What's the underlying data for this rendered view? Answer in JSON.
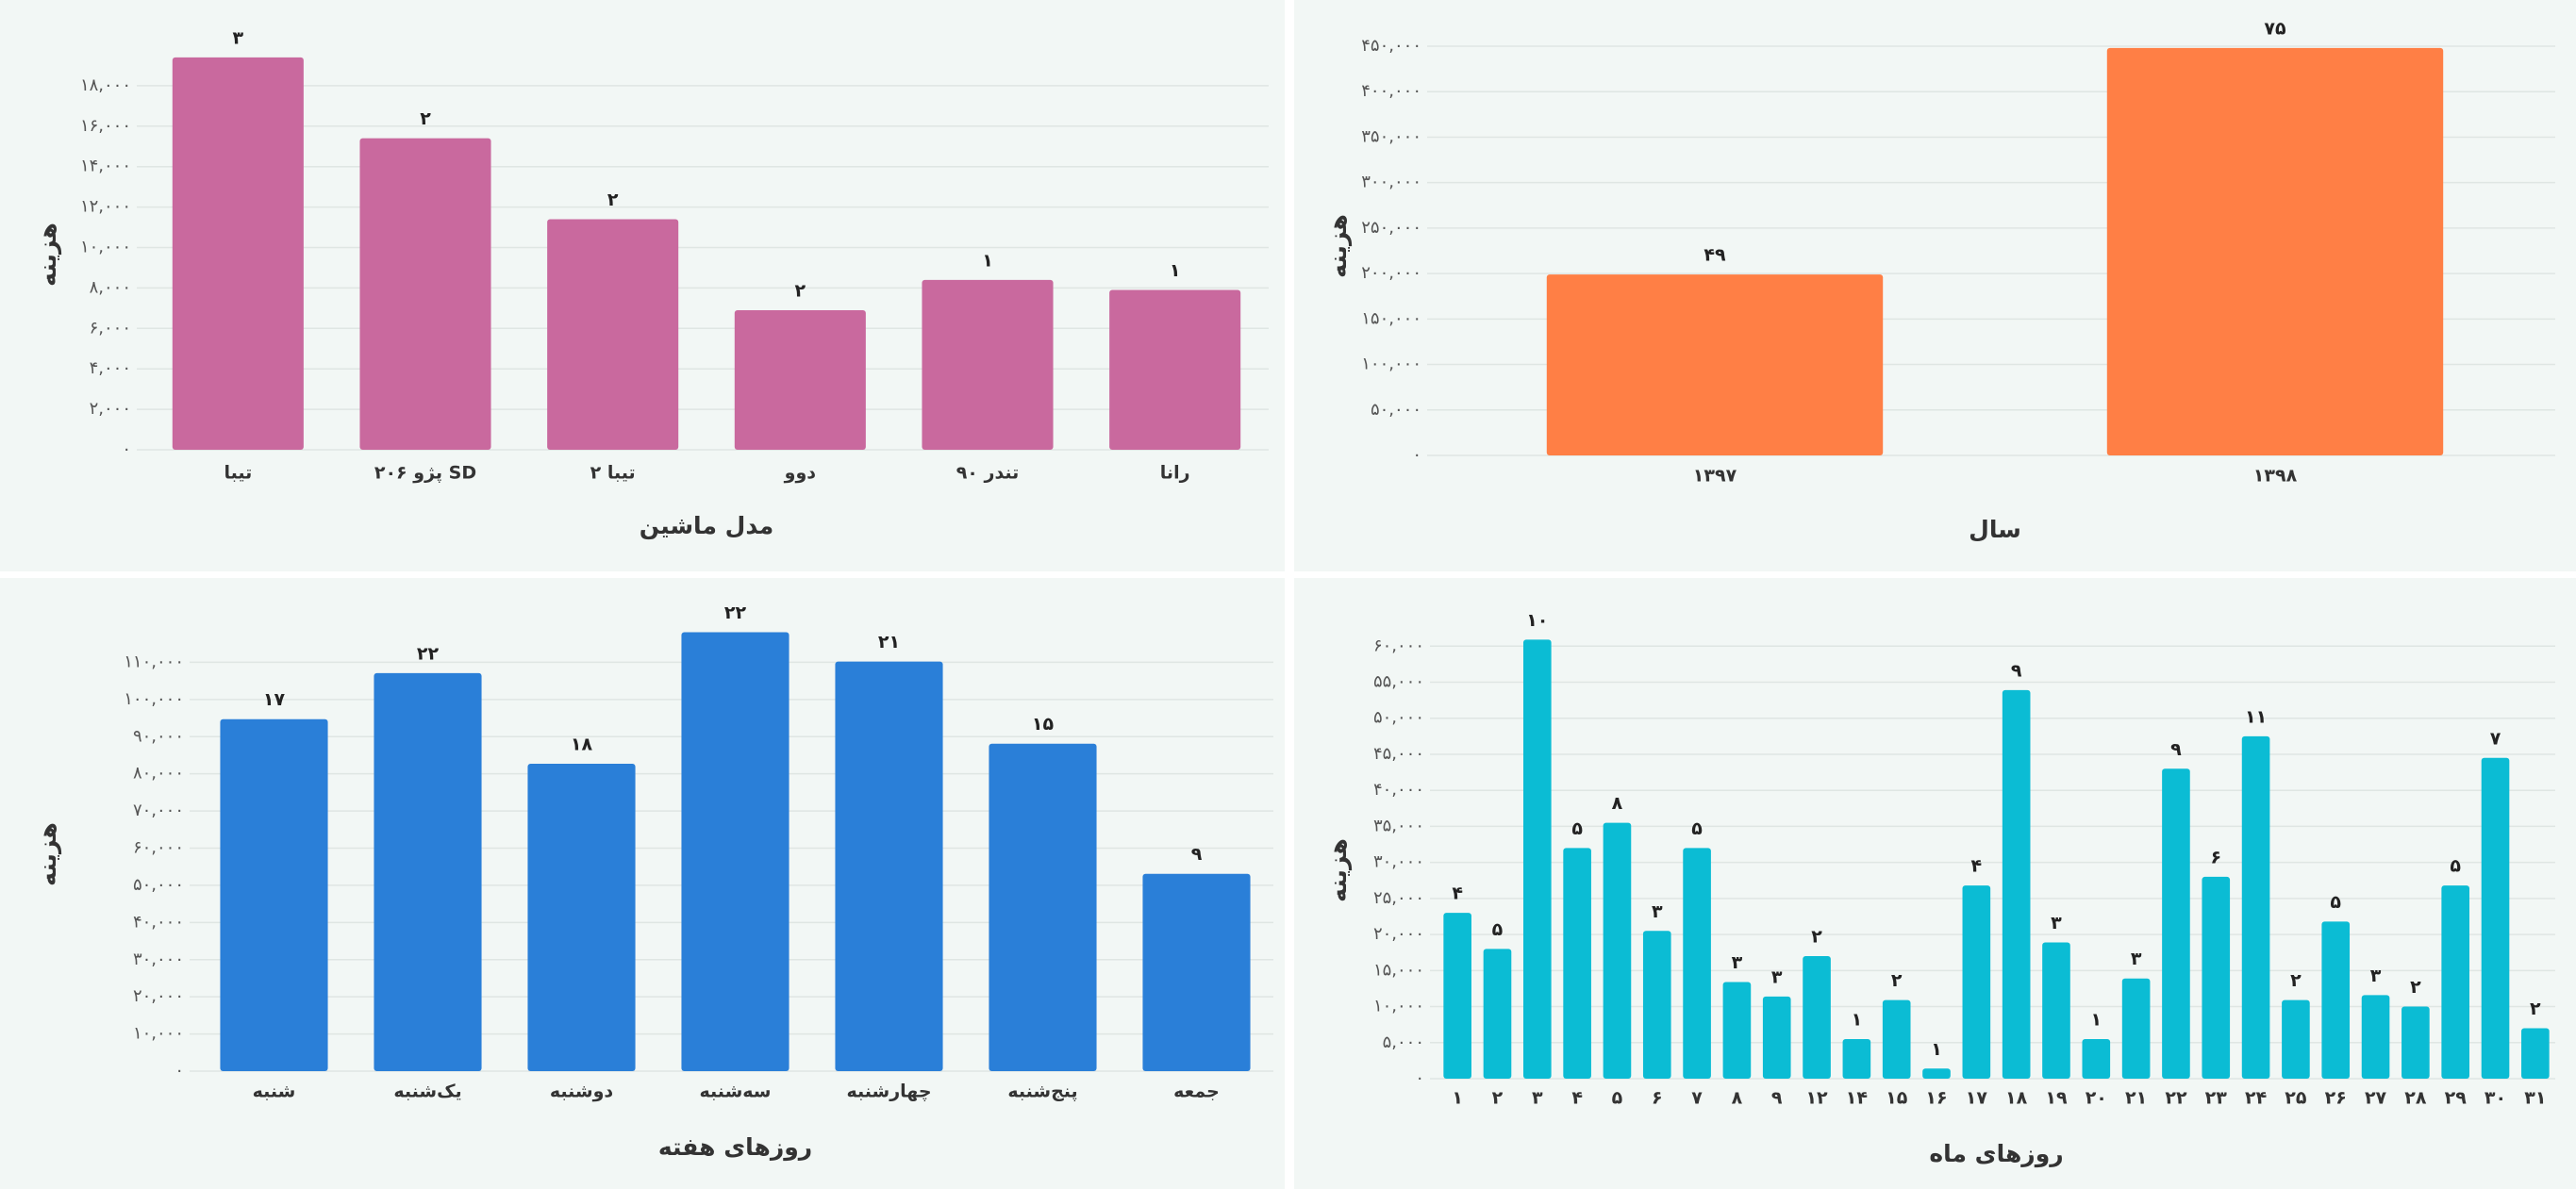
{
  "chart_data": [
    {
      "type": "bar",
      "x_label": "مدل ماشین",
      "y_label": "هزینه",
      "categories": [
        "تیبا",
        "پژو ۲۰۶ SD",
        "تیبا ۲",
        "دوو",
        "تندر ۹۰",
        "رانا"
      ],
      "values": [
        19400,
        15400,
        11400,
        6900,
        8400,
        7900
      ],
      "count_labels": [
        "۳",
        "۲",
        "۲",
        "۲",
        "۱",
        "۱"
      ],
      "color": "#c9699e",
      "ylim": [
        0,
        20000
      ],
      "grid": true,
      "yticks": [
        {
          "value": 0,
          "label": "۰"
        },
        {
          "value": 2000,
          "label": "۲,۰۰۰"
        },
        {
          "value": 4000,
          "label": "۴,۰۰۰"
        },
        {
          "value": 6000,
          "label": "۶,۰۰۰"
        },
        {
          "value": 8000,
          "label": "۸,۰۰۰"
        },
        {
          "value": 10000,
          "label": "۱۰,۰۰۰"
        },
        {
          "value": 12000,
          "label": "۱۲,۰۰۰"
        },
        {
          "value": 14000,
          "label": "۱۴,۰۰۰"
        },
        {
          "value": 16000,
          "label": "۱۶,۰۰۰"
        },
        {
          "value": 18000,
          "label": "۱۸,۰۰۰"
        }
      ]
    },
    {
      "type": "bar",
      "x_label": "سال",
      "y_label": "هزینه",
      "categories": [
        "۱۳۹۷",
        "۱۳۹۸"
      ],
      "values": [
        199000,
        448000
      ],
      "count_labels": [
        "۴۹",
        "۷۵"
      ],
      "color": "#ff7f45",
      "ylim": [
        0,
        450000
      ],
      "grid": true,
      "yticks": [
        {
          "value": 0,
          "label": "۰"
        },
        {
          "value": 50000,
          "label": "۵۰,۰۰۰"
        },
        {
          "value": 100000,
          "label": "۱۰۰,۰۰۰"
        },
        {
          "value": 150000,
          "label": "۱۵۰,۰۰۰"
        },
        {
          "value": 200000,
          "label": "۲۰۰,۰۰۰"
        },
        {
          "value": 250000,
          "label": "۲۵۰,۰۰۰"
        },
        {
          "value": 300000,
          "label": "۳۰۰,۰۰۰"
        },
        {
          "value": 350000,
          "label": "۳۵۰,۰۰۰"
        },
        {
          "value": 400000,
          "label": "۴۰۰,۰۰۰"
        },
        {
          "value": 450000,
          "label": "۴۵۰,۰۰۰"
        }
      ]
    },
    {
      "type": "bar",
      "x_label": "روزهای هفته",
      "y_label": "هزینه",
      "categories": [
        "شنبه",
        "یک‌شنبه",
        "دوشنبه",
        "سه‌شنبه",
        "چهارشنبه",
        "پنج‌شنبه",
        "جمعه"
      ],
      "values": [
        94700,
        107100,
        82700,
        118100,
        110200,
        88100,
        53100
      ],
      "count_labels": [
        "۱۷",
        "۲۲",
        "۱۸",
        "۲۲",
        "۲۱",
        "۱۵",
        "۹"
      ],
      "color": "#2a7fd8",
      "ylim": [
        0,
        120000
      ],
      "grid": true,
      "yticks": [
        {
          "value": 0,
          "label": "۰"
        },
        {
          "value": 10000,
          "label": "۱۰,۰۰۰"
        },
        {
          "value": 20000,
          "label": "۲۰,۰۰۰"
        },
        {
          "value": 30000,
          "label": "۳۰,۰۰۰"
        },
        {
          "value": 40000,
          "label": "۴۰,۰۰۰"
        },
        {
          "value": 50000,
          "label": "۵۰,۰۰۰"
        },
        {
          "value": 60000,
          "label": "۶۰,۰۰۰"
        },
        {
          "value": 70000,
          "label": "۷۰,۰۰۰"
        },
        {
          "value": 80000,
          "label": "۸۰,۰۰۰"
        },
        {
          "value": 90000,
          "label": "۹۰,۰۰۰"
        },
        {
          "value": 100000,
          "label": "۱۰۰,۰۰۰"
        },
        {
          "value": 110000,
          "label": "۱۱۰,۰۰۰"
        }
      ]
    },
    {
      "type": "bar",
      "x_label": "روزهای ماه",
      "y_label": "هزینه",
      "categories": [
        "۱",
        "۲",
        "۳",
        "۴",
        "۵",
        "۶",
        "۷",
        "۸",
        "۹",
        "۱۲",
        "۱۴",
        "۱۵",
        "۱۶",
        "۱۷",
        "۱۸",
        "۱۹",
        "۲۰",
        "۲۱",
        "۲۲",
        "۲۳",
        "۲۴",
        "۲۵",
        "۲۶",
        "۲۷",
        "۲۸",
        "۲۹",
        "۳۰",
        "۳۱"
      ],
      "values": [
        23000,
        18000,
        60900,
        32000,
        35500,
        20500,
        32000,
        13400,
        11400,
        17000,
        5500,
        10900,
        1400,
        26800,
        53900,
        18900,
        5500,
        13900,
        43000,
        28000,
        47500,
        10900,
        21800,
        11600,
        10000,
        26800,
        44500,
        7000
      ],
      "count_labels": [
        "۴",
        "۵",
        "۱۰",
        "۵",
        "۸",
        "۳",
        "۵",
        "۳",
        "۳",
        "۲",
        "۱",
        "۲",
        "۱",
        "۴",
        "۹",
        "۳",
        "۱",
        "۳",
        "۹",
        "۶",
        "۱۱",
        "۲",
        "۵",
        "۳",
        "۲",
        "۵",
        "۷",
        "۲"
      ],
      "color": "#0bbcd4",
      "ylim": [
        0,
        62000
      ],
      "grid": true,
      "yticks": [
        {
          "value": 0,
          "label": "۰"
        },
        {
          "value": 5000,
          "label": "۵,۰۰۰"
        },
        {
          "value": 10000,
          "label": "۱۰,۰۰۰"
        },
        {
          "value": 15000,
          "label": "۱۵,۰۰۰"
        },
        {
          "value": 20000,
          "label": "۲۰,۰۰۰"
        },
        {
          "value": 25000,
          "label": "۲۵,۰۰۰"
        },
        {
          "value": 30000,
          "label": "۳۰,۰۰۰"
        },
        {
          "value": 35000,
          "label": "۳۵,۰۰۰"
        },
        {
          "value": 40000,
          "label": "۴۰,۰۰۰"
        },
        {
          "value": 45000,
          "label": "۴۵,۰۰۰"
        },
        {
          "value": 50000,
          "label": "۵۰,۰۰۰"
        },
        {
          "value": 55000,
          "label": "۵۵,۰۰۰"
        },
        {
          "value": 60000,
          "label": "۶۰,۰۰۰"
        }
      ]
    }
  ]
}
